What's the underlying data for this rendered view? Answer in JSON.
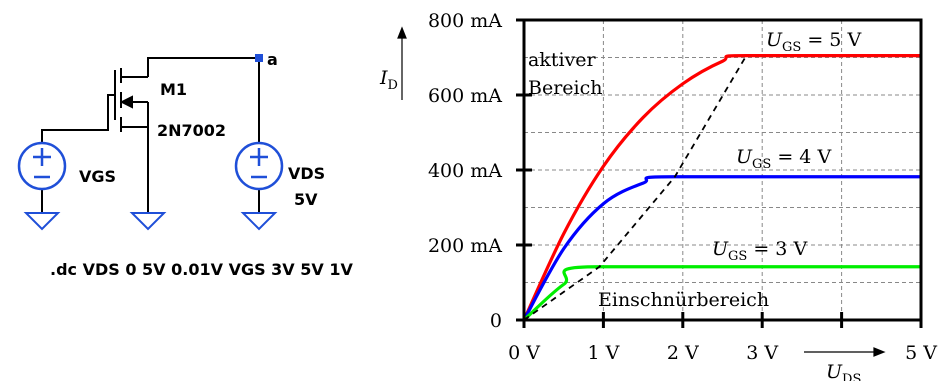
{
  "schematic": {
    "transistor_name": "M1",
    "transistor_model": "2N7002",
    "source_gs_label": "VGS",
    "source_ds_label": "VDS",
    "source_ds_value": "5V",
    "node_label": "a",
    "sim_command": ".dc VDS 0 5V 0.01V VGS 3V 5V 1V",
    "wire_color": "#000000",
    "symbol_color": "#1f4fd8"
  },
  "chart_data": {
    "type": "line",
    "xlim": [
      0,
      5
    ],
    "ylim": [
      0,
      800
    ],
    "grid": true,
    "x_ticks": [
      {
        "value": 0,
        "label": "0 V"
      },
      {
        "value": 1,
        "label": "1 V"
      },
      {
        "value": 2,
        "label": "2 V"
      },
      {
        "value": 3,
        "label": "3 V"
      },
      {
        "value": 5,
        "label": "5 V"
      }
    ],
    "y_ticks": [
      {
        "value": 0,
        "label": "0"
      },
      {
        "value": 200,
        "label": "200 mA"
      },
      {
        "value": 400,
        "label": "400 mA"
      },
      {
        "value": 600,
        "label": "600 mA"
      },
      {
        "value": 800,
        "label": "800 mA"
      }
    ],
    "xlabel": "U_DS",
    "ylabel": "I_D",
    "series": [
      {
        "name": "U_GS = 5 V",
        "color": "#ff0000",
        "x": [
          0,
          0.5,
          1.0,
          1.5,
          2.0,
          2.5,
          2.8,
          5.0
        ],
        "y": [
          0,
          230,
          410,
          540,
          630,
          690,
          705,
          705
        ]
      },
      {
        "name": "U_GS = 4 V",
        "color": "#0000ff",
        "x": [
          0,
          0.5,
          1.0,
          1.5,
          1.9,
          5.0
        ],
        "y": [
          0,
          190,
          310,
          365,
          382,
          382
        ]
      },
      {
        "name": "U_GS = 3 V",
        "color": "#00ee00",
        "x": [
          0,
          0.5,
          0.95,
          5.0
        ],
        "y": [
          0,
          95,
          142,
          142
        ]
      },
      {
        "name": "saturation boundary",
        "color": "#000000",
        "dashed": true,
        "x": [
          0,
          0.95,
          1.9,
          2.8
        ],
        "y": [
          0,
          142,
          382,
          705
        ]
      }
    ],
    "curve_labels": [
      {
        "base": "U",
        "sub": "GS",
        "rest": " = 5 V"
      },
      {
        "base": "U",
        "sub": "GS",
        "rest": " = 4 V"
      },
      {
        "base": "U",
        "sub": "GS",
        "rest": " = 3 V"
      }
    ],
    "annotations": {
      "active_line1": "aktiver",
      "active_line2": "Bereich",
      "pinch_off": "Einschnürbereich"
    },
    "axis_labels": {
      "x_base": "U",
      "x_sub": "DS",
      "y_base": "I",
      "y_sub": "D"
    }
  }
}
